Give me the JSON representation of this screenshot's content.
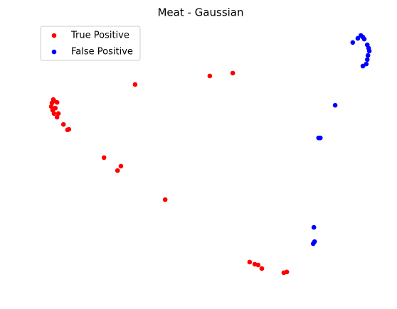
{
  "chart_data": {
    "type": "scatter",
    "title": "Meat - Gaussian",
    "xlim": [
      0,
      100
    ],
    "ylim": [
      0,
      100
    ],
    "axis": false,
    "legend": "upper left",
    "series": [
      {
        "name": "True Positive",
        "color": "#ff0000",
        "x": [
          4.2,
          3.8,
          4.4,
          3.6,
          4.0,
          4.8,
          5.3,
          4.4,
          5.7,
          5.3,
          7.2,
          8.4,
          8.8,
          19.2,
          24.2,
          23.2,
          28.4,
          50.5,
          57.3,
          37.3,
          62.3,
          63.8,
          64.8,
          65.9,
          72.4,
          73.3
        ],
        "values": [
          71.2,
          69.9,
          70.7,
          68.5,
          67.1,
          67.9,
          70.1,
          65.8,
          65.8,
          64.4,
          61.6,
          59.5,
          59.7,
          48.8,
          45.5,
          43.8,
          77.0,
          80.3,
          81.4,
          32.6,
          8.5,
          7.7,
          7.4,
          6.0,
          4.4,
          4.7
        ]
      },
      {
        "name": "False Positive",
        "color": "#0000ff",
        "x": [
          92.8,
          94.3,
          95.2,
          95.8,
          96.2,
          97.1,
          97.5,
          97.7,
          97.3,
          97.1,
          96.8,
          95.8,
          87.6,
          82.7,
          83.2,
          81.3,
          81.5,
          81.1
        ],
        "values": [
          93.2,
          94.8,
          95.9,
          95.3,
          94.5,
          92.3,
          91.0,
          89.9,
          88.2,
          86.6,
          84.9,
          84.1,
          69.0,
          56.4,
          56.4,
          21.9,
          16.4,
          15.6
        ]
      }
    ]
  }
}
